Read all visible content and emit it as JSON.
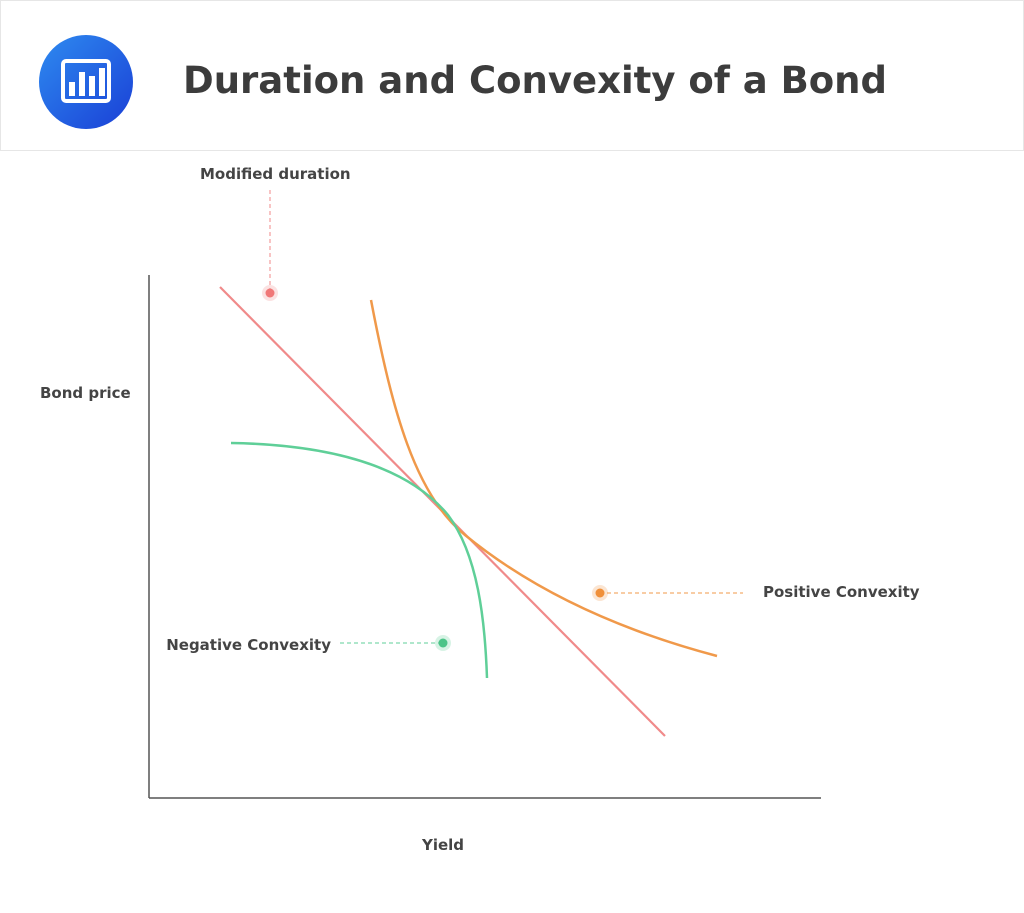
{
  "header": {
    "title": "Duration and Convexity of a Bond"
  },
  "diagram": {
    "y_axis_label": "Bond price",
    "x_axis_label": "Yield",
    "annotations": {
      "modified_duration": "Modified duration",
      "positive_convexity": "Positive Convexity",
      "negative_convexity": "Negative Convexity"
    }
  }
}
